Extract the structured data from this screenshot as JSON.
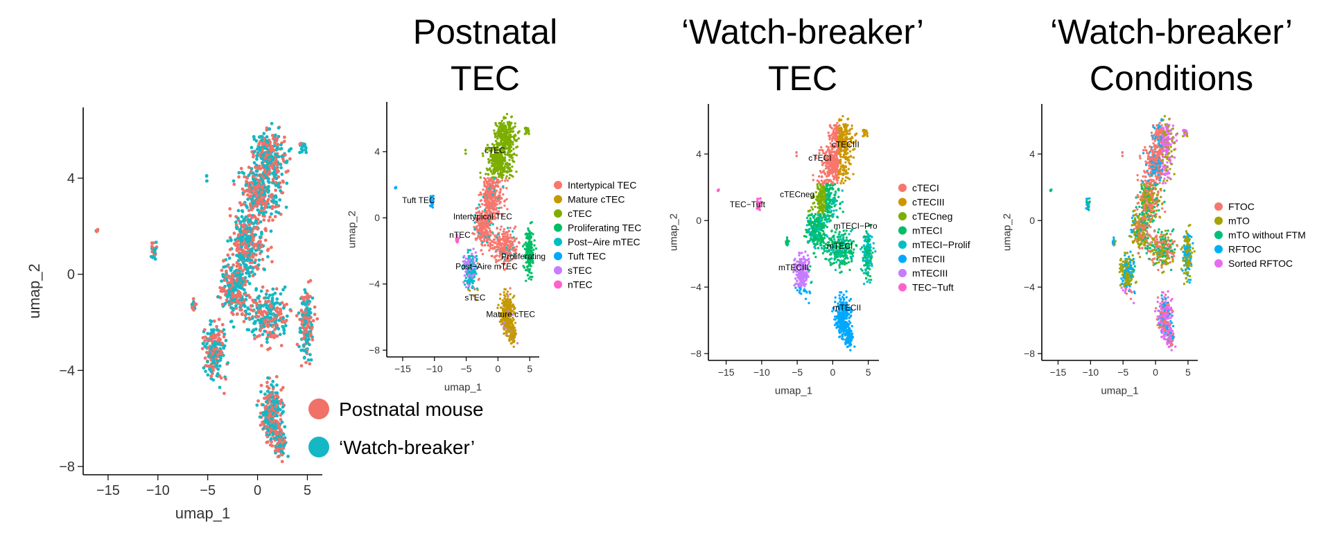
{
  "chart_data": [
    {
      "type": "scatter",
      "title": [],
      "xlabel": "umap_1",
      "ylabel": "umap_2",
      "xlim": [
        -17.5,
        6.5
      ],
      "ylim": [
        -8.2,
        6.8
      ],
      "x_ticks": [
        -15,
        -10,
        -5,
        0,
        5
      ],
      "y_ticks": [
        -8,
        -4,
        0,
        4
      ],
      "legend": [
        {
          "name": "Postnatal mouse",
          "color": "#f07168"
        },
        {
          "name": "‘Watch-breaker’",
          "color": "#14b8c4"
        }
      ],
      "cluster_labels": []
    },
    {
      "type": "scatter",
      "title": [
        "Postnatal",
        "TEC"
      ],
      "xlabel": "umap_1",
      "ylabel": "umap_2",
      "xlim": [
        -17.5,
        6.5
      ],
      "ylim": [
        -8.2,
        6.8
      ],
      "x_ticks": [
        -15,
        -10,
        -5,
        0,
        5
      ],
      "y_ticks": [
        -8,
        -4,
        0,
        4
      ],
      "legend": [
        {
          "name": "Intertypical TEC",
          "color": "#f8766d"
        },
        {
          "name": "Mature cTEC",
          "color": "#c49a00"
        },
        {
          "name": "cTEC",
          "color": "#7cae00"
        },
        {
          "name": "Proliferating TEC",
          "color": "#00be67"
        },
        {
          "name": "Post−Aire mTEC",
          "color": "#00bfc4"
        },
        {
          "name": "Tuft TEC",
          "color": "#00a9ff"
        },
        {
          "name": "sTEC",
          "color": "#c77cff"
        },
        {
          "name": "nTEC",
          "color": "#ff61cc"
        }
      ],
      "cluster_labels": [
        {
          "text": "cTEC",
          "x": -0.5,
          "y": 3.9
        },
        {
          "text": "Tuft TEC",
          "x": -12.5,
          "y": 0.9
        },
        {
          "text": "Intertypical TEC",
          "x": -2.4,
          "y": -0.1
        },
        {
          "text": "nTEC",
          "x": -6.0,
          "y": -1.2
        },
        {
          "text": "Proliferating",
          "x": 4.0,
          "y": -2.5
        },
        {
          "text": "Post−Aire mTEC",
          "x": -1.8,
          "y": -3.1
        },
        {
          "text": "sTEC",
          "x": -3.6,
          "y": -5.0
        },
        {
          "text": "Mature cTEC",
          "x": 2.0,
          "y": -6.0
        }
      ]
    },
    {
      "type": "scatter",
      "title": [
        "‘Watch-breaker’",
        "TEC"
      ],
      "xlabel": "umap_1",
      "ylabel": "umap_2",
      "xlim": [
        -17.5,
        6.5
      ],
      "ylim": [
        -8.2,
        6.8
      ],
      "x_ticks": [
        -15,
        -10,
        -5,
        0,
        5
      ],
      "y_ticks": [
        -8,
        -4,
        0,
        4
      ],
      "legend": [
        {
          "name": "cTECI",
          "color": "#f8766d"
        },
        {
          "name": "cTECIII",
          "color": "#cd9600"
        },
        {
          "name": "cTECneg",
          "color": "#7cae00"
        },
        {
          "name": "mTECI",
          "color": "#00be67"
        },
        {
          "name": "mTECI−Prolif",
          "color": "#00bfc4"
        },
        {
          "name": "mTECII",
          "color": "#00a9ff"
        },
        {
          "name": "mTECIII",
          "color": "#c77cff"
        },
        {
          "name": "TEC−Tuft",
          "color": "#ff61cc"
        }
      ],
      "cluster_labels": [
        {
          "text": "cTECIII",
          "x": 1.8,
          "y": 4.4
        },
        {
          "text": "cTECI",
          "x": -1.8,
          "y": 3.6
        },
        {
          "text": "cTECneg",
          "x": -5.0,
          "y": 1.4
        },
        {
          "text": "TEC−Tuft",
          "x": -12.0,
          "y": 0.8
        },
        {
          "text": "mTECI−Pro",
          "x": 3.2,
          "y": -0.5
        },
        {
          "text": "mTECI",
          "x": 1.0,
          "y": -1.7
        },
        {
          "text": "mTECIII",
          "x": -5.5,
          "y": -3.0
        },
        {
          "text": "mTECII",
          "x": 2.0,
          "y": -5.4
        }
      ]
    },
    {
      "type": "scatter",
      "title": [
        "‘Watch-breaker’",
        "Conditions"
      ],
      "xlabel": "umap_1",
      "ylabel": "umap_2",
      "xlim": [
        -17.5,
        6.5
      ],
      "ylim": [
        -8.2,
        6.8
      ],
      "x_ticks": [
        -15,
        -10,
        -5,
        0,
        5
      ],
      "y_ticks": [
        -8,
        -4,
        0,
        4
      ],
      "legend": [
        {
          "name": "FTOC",
          "color": "#f8766d"
        },
        {
          "name": "mTO",
          "color": "#a3a500"
        },
        {
          "name": "mTO without FTM",
          "color": "#00bf7d"
        },
        {
          "name": "RFTOC",
          "color": "#00b0f6"
        },
        {
          "name": "Sorted RFTOC",
          "color": "#e76bf3"
        }
      ],
      "cluster_labels": []
    }
  ]
}
